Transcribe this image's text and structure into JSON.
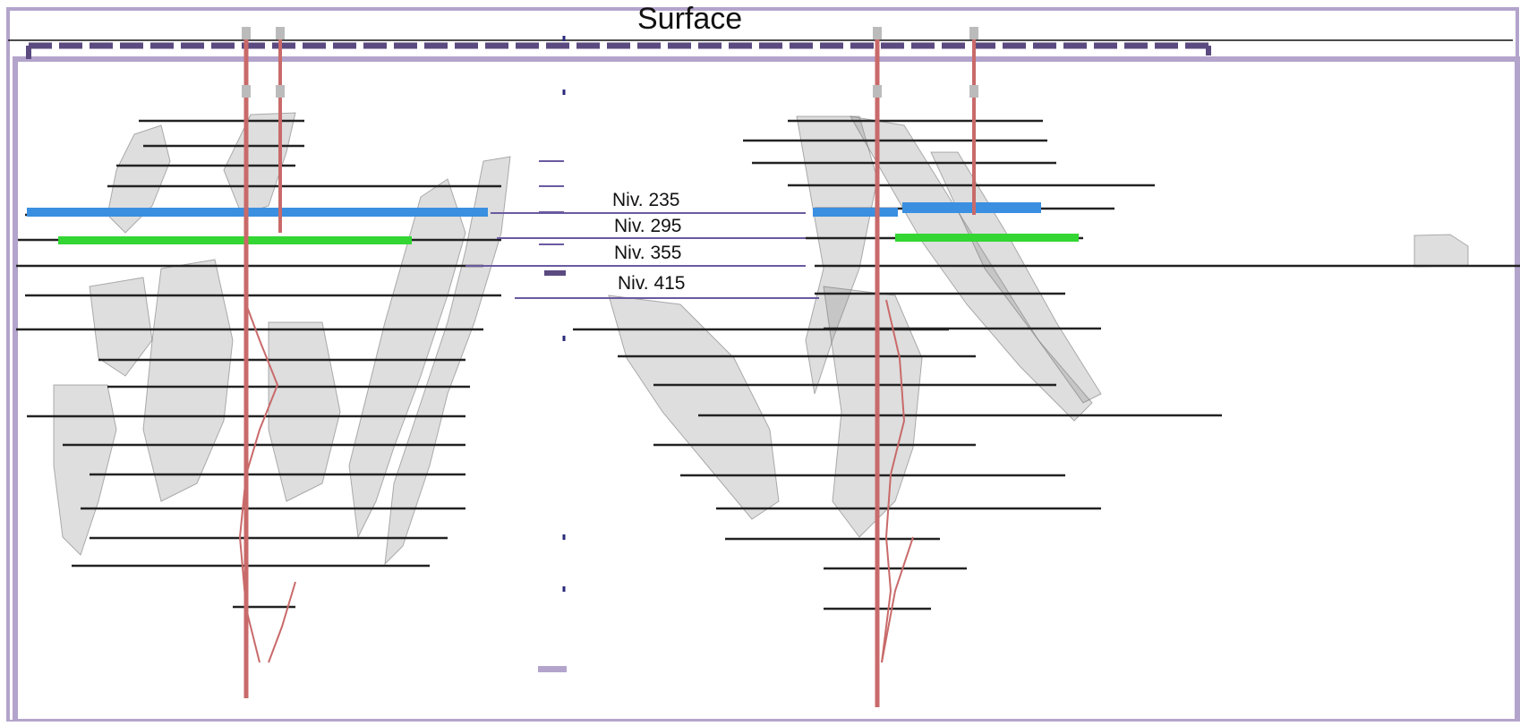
{
  "diagram": {
    "surface_label": "Surface",
    "levels": [
      {
        "label": "Niv. 235",
        "depth": 235,
        "color": "#3a8fe0"
      },
      {
        "label": "Niv. 295",
        "depth": 295,
        "color": "#33d633"
      },
      {
        "label": "Niv. 355",
        "depth": 355
      },
      {
        "label": "Niv. 415",
        "depth": 415
      }
    ]
  },
  "colors": {
    "frame": "#b3a4cc",
    "dash": "#5b4a80",
    "level_line": "#6a5aa0",
    "shaft": "#c96a6a",
    "orebody": "#8a8a8a",
    "drift": "#222222",
    "highlight_235": "#3a8fe0",
    "highlight_295": "#33d633"
  }
}
